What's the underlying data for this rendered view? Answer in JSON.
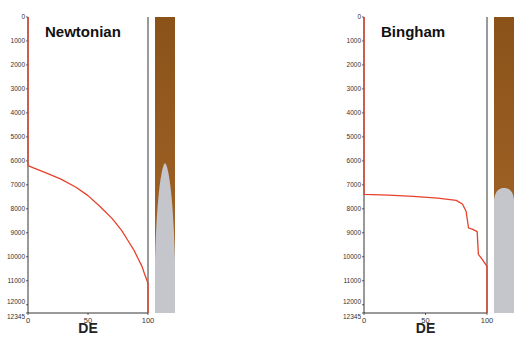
{
  "chart_data": [
    {
      "type": "line",
      "title": "Newtonian",
      "x_label": "DE",
      "color": "#e8402a",
      "x": [
        0,
        0,
        5,
        15,
        27,
        40,
        50,
        60,
        70,
        78,
        83,
        88,
        92,
        95,
        97,
        100,
        100
      ],
      "values": [
        0,
        6200,
        6300,
        6500,
        6750,
        7100,
        7450,
        7900,
        8400,
        8900,
        9300,
        9700,
        10100,
        10400,
        10700,
        11100,
        12345
      ],
      "xlim": [
        0,
        100
      ],
      "xticks": [
        0,
        50,
        100
      ],
      "ylim": [
        0,
        12345
      ],
      "yticks": [
        0,
        1000,
        2000,
        3000,
        4000,
        5000,
        6000,
        7000,
        8000,
        9000,
        10000,
        11000,
        12000,
        12345
      ]
    },
    {
      "type": "line",
      "title": "Bingham",
      "x_label": "DE",
      "color": "#e8402a",
      "x": [
        0,
        0,
        20,
        40,
        60,
        75,
        80,
        83,
        85,
        88,
        92,
        93,
        96,
        100,
        100
      ],
      "values": [
        0,
        7400,
        7430,
        7480,
        7550,
        7650,
        7800,
        8100,
        8800,
        8850,
        8950,
        9900,
        10100,
        10400,
        12345
      ],
      "xlim": [
        0,
        100
      ],
      "xticks": [
        0,
        50,
        100
      ],
      "ylim": [
        0,
        12345
      ],
      "yticks": [
        0,
        1000,
        2000,
        3000,
        4000,
        5000,
        6000,
        7000,
        8000,
        9000,
        10000,
        11000,
        12000,
        12345
      ]
    }
  ]
}
